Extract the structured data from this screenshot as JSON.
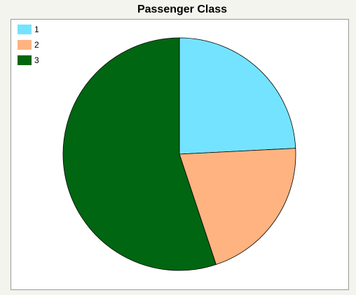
{
  "chart_data": {
    "type": "pie",
    "title": "Passenger Class",
    "categories": [
      "1",
      "2",
      "3"
    ],
    "values": [
      24.2,
      20.7,
      55.1
    ],
    "colors": [
      "#74e3ff",
      "#ffb380",
      "#006611"
    ],
    "legend": "top-left"
  }
}
